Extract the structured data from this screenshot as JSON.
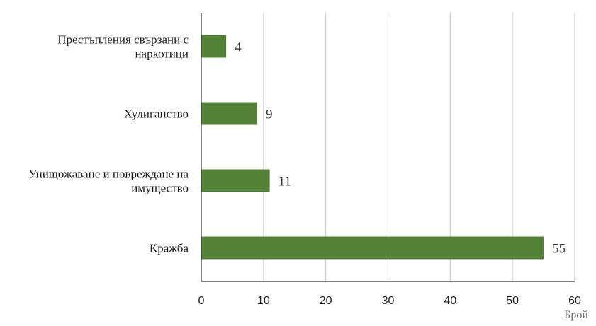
{
  "chart_data": {
    "type": "bar",
    "orientation": "horizontal",
    "categories": [
      [
        "Престъпления свързани с",
        "наркотици"
      ],
      [
        "Хулиганство"
      ],
      [
        "Унищожаване и повреждане на",
        "имущество"
      ],
      [
        "Кражба"
      ]
    ],
    "values": [
      4,
      9,
      11,
      55
    ],
    "value_labels": [
      "4",
      "9",
      "11",
      "55"
    ],
    "xlabel": "Брой",
    "xlim": [
      0,
      60
    ],
    "xticks": [
      0,
      10,
      20,
      30,
      40,
      50,
      60
    ],
    "xtick_labels": [
      "0",
      "10",
      "20",
      "30",
      "40",
      "50",
      "60"
    ],
    "grid": "vertical",
    "bar_color": "#538135",
    "grid_color": "#d0d0d0",
    "axis_color": "#333333"
  }
}
